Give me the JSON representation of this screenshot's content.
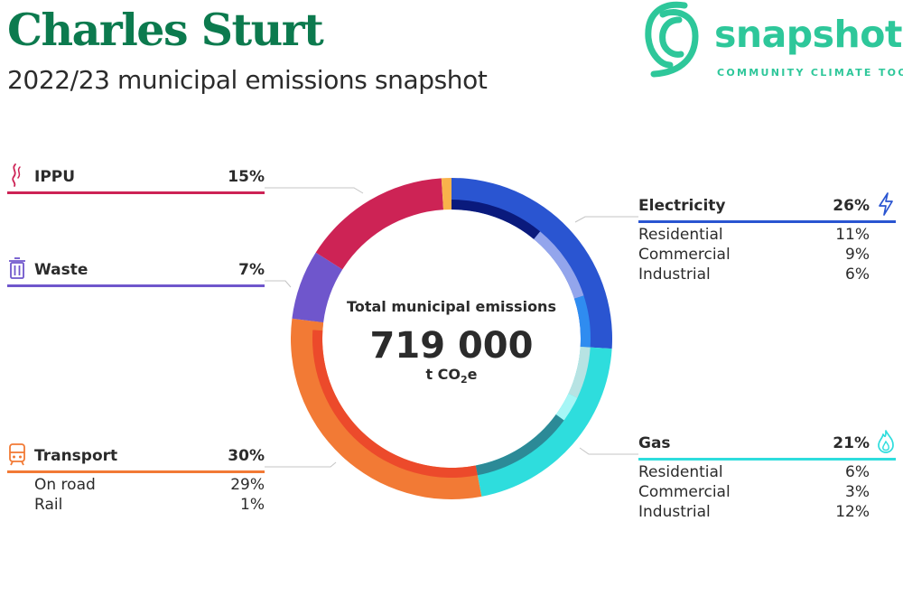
{
  "header": {
    "title": "Charles Sturt",
    "subtitle": "2022/23 municipal emissions snapshot"
  },
  "logo": {
    "word": "snapshot",
    "tagline": "COMMUNITY CLIMATE TOOL",
    "color": "#2ec79a"
  },
  "chart_data": {
    "type": "pie",
    "title": "Total municipal emissions",
    "total_value": "719 000",
    "total_unit_prefix": "t CO",
    "total_unit_sub": "2",
    "total_unit_suffix": "e",
    "series": [
      {
        "name": "Electricity",
        "percent": "26%",
        "value": 26,
        "color": "#2a55d1",
        "icon": "lightning-icon",
        "subs": [
          {
            "name": "Residential",
            "percent": "11%",
            "value": 11,
            "color": "#0a1a7c"
          },
          {
            "name": "Commercial",
            "percent": "9%",
            "value": 9,
            "color": "#93a5ec"
          },
          {
            "name": "Industrial",
            "percent": "6%",
            "value": 6,
            "color": "#2f8cf0"
          }
        ]
      },
      {
        "name": "Gas",
        "percent": "21%",
        "value": 21,
        "color": "#2edddd",
        "icon": "flame-icon",
        "subs": [
          {
            "name": "Residential",
            "percent": "6%",
            "value": 6,
            "color": "#b7e3e3"
          },
          {
            "name": "Commercial",
            "percent": "3%",
            "value": 3,
            "color": "#a6f6f6"
          },
          {
            "name": "Industrial",
            "percent": "12%",
            "value": 12,
            "color": "#2c8a97"
          }
        ]
      },
      {
        "name": "Transport",
        "percent": "30%",
        "value": 30,
        "color": "#f27a35",
        "icon": "train-icon",
        "subs": [
          {
            "name": "On road",
            "percent": "29%",
            "value": 29,
            "color": "#ec4a2b"
          },
          {
            "name": "Rail",
            "percent": "1%",
            "value": 1,
            "color": "#f07a35"
          }
        ]
      },
      {
        "name": "Waste",
        "percent": "7%",
        "value": 7,
        "color": "#6f56cc",
        "icon": "bin-icon",
        "subs": []
      },
      {
        "name": "IPPU",
        "percent": "15%",
        "value": 15,
        "color": "#cd2355",
        "icon": "smoke-icon",
        "subs": []
      },
      {
        "name": "",
        "percent": "",
        "value": 1,
        "color": "#f9b24b",
        "icon": "",
        "subs": []
      }
    ]
  }
}
